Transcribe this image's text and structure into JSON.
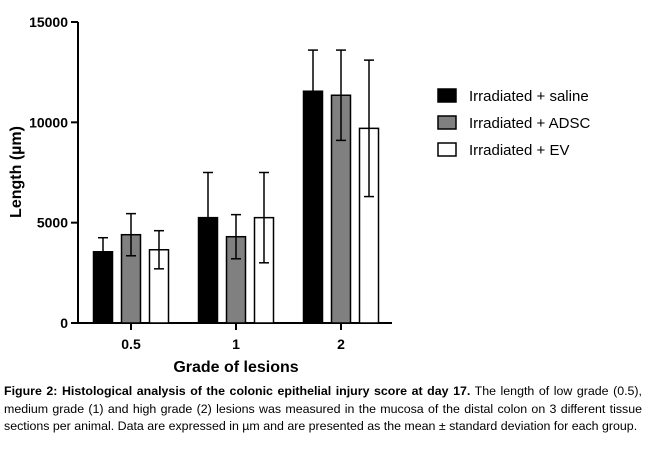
{
  "chart_data": {
    "type": "bar",
    "categories": [
      "0.5",
      "1",
      "2"
    ],
    "series": [
      {
        "name": "Irradiated + saline",
        "color": "#000000",
        "values": [
          3550,
          5250,
          11550
        ],
        "errors": [
          700,
          2250,
          2050
        ]
      },
      {
        "name": "Irradiated + ADSC",
        "color": "#808080",
        "values": [
          4400,
          4300,
          11350
        ],
        "errors": [
          1050,
          1100,
          2250
        ]
      },
      {
        "name": "Irradiated + EV",
        "color": "#ffffff",
        "values": [
          3650,
          5250,
          9700
        ],
        "errors": [
          950,
          2250,
          3400
        ]
      }
    ],
    "xlabel": "Grade of lesions",
    "ylabel": "Length (µm)",
    "ylim": [
      0,
      15000
    ],
    "yticks": [
      "0",
      "5000",
      "10000",
      "15000"
    ],
    "error_bars": "mean ± standard deviation",
    "legend_position": "right"
  },
  "caption": {
    "bold": "Figure 2: Histological analysis of the colonic epithelial injury score at day 17.",
    "text": " The length of low grade (0.5), medium grade (1) and high grade (2) lesions was measured in the mucosa of the distal colon on 3 different tissue sections per animal. Data are expressed in µm and are presented as the mean ± standard deviation for each group."
  }
}
